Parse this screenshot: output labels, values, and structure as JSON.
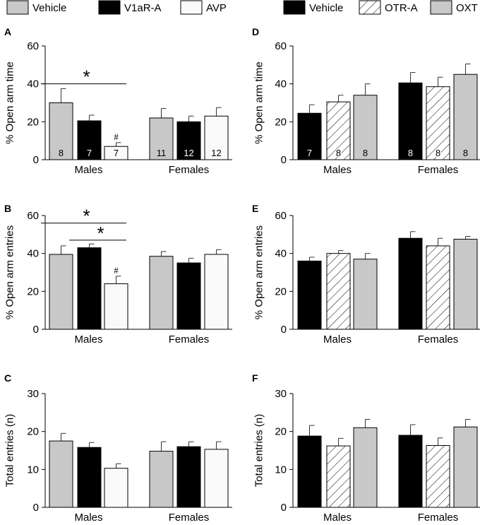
{
  "legends": {
    "left": [
      {
        "label": "Vehicle",
        "style": "gray"
      },
      {
        "label": "V1aR-A",
        "style": "black"
      },
      {
        "label": "AVP",
        "style": "white"
      }
    ],
    "right": [
      {
        "label": "Vehicle",
        "style": "black"
      },
      {
        "label": "OTR-A",
        "style": "hatch"
      },
      {
        "label": "OXT",
        "style": "gray"
      }
    ]
  },
  "colors": {
    "gray": "#c8c8c8",
    "black": "#000000",
    "white": "#fafafa"
  },
  "chart_data": [
    {
      "id": "A",
      "type": "bar",
      "ylabel": "% Open arm time",
      "ylim": [
        0,
        60
      ],
      "yticks": [
        0,
        20,
        40,
        60
      ],
      "categories": [
        "Males",
        "Females"
      ],
      "series": [
        {
          "name": "Vehicle",
          "values": [
            30,
            22
          ],
          "errors": [
            7.5,
            5
          ],
          "n": [
            "8",
            "11"
          ]
        },
        {
          "name": "V1aR-A",
          "values": [
            20.5,
            20
          ],
          "errors": [
            3,
            3
          ],
          "n": [
            "7",
            "12"
          ]
        },
        {
          "name": "AVP",
          "values": [
            7,
            23
          ],
          "errors": [
            2,
            4.5
          ],
          "n": [
            "7",
            "12"
          ]
        }
      ],
      "hash_marks": [
        {
          "group": 0,
          "series": 2,
          "label": "#"
        }
      ],
      "significance": [
        {
          "group": 0,
          "from": 0,
          "to": 2,
          "y": 40,
          "label": "*"
        }
      ]
    },
    {
      "id": "B",
      "type": "bar",
      "ylabel": "% Open arm entries",
      "ylim": [
        0,
        60
      ],
      "yticks": [
        0,
        20,
        40,
        60
      ],
      "categories": [
        "Males",
        "Females"
      ],
      "series": [
        {
          "name": "Vehicle",
          "values": [
            39.5,
            38.5
          ],
          "errors": [
            4.5,
            2.5
          ]
        },
        {
          "name": "V1aR-A",
          "values": [
            43,
            35
          ],
          "errors": [
            2,
            2.5
          ]
        },
        {
          "name": "AVP",
          "values": [
            24,
            39.5
          ],
          "errors": [
            4,
            2.5
          ]
        }
      ],
      "hash_marks": [
        {
          "group": 0,
          "series": 2,
          "label": "#"
        }
      ],
      "significance": [
        {
          "group": 0,
          "from": 0,
          "to": 2,
          "y": 56,
          "label": "*"
        },
        {
          "group": 0,
          "from": 1,
          "to": 2,
          "y": 47,
          "label": "*"
        }
      ]
    },
    {
      "id": "C",
      "type": "bar",
      "ylabel": "Total entries (n)",
      "ylim": [
        0,
        30
      ],
      "yticks": [
        0,
        10,
        20,
        30
      ],
      "categories": [
        "Males",
        "Females"
      ],
      "series": [
        {
          "name": "Vehicle",
          "values": [
            17.5,
            14.8
          ],
          "errors": [
            2,
            2.5
          ]
        },
        {
          "name": "V1aR-A",
          "values": [
            15.8,
            16
          ],
          "errors": [
            1.3,
            1.3
          ]
        },
        {
          "name": "AVP",
          "values": [
            10.3,
            15.3
          ],
          "errors": [
            1.2,
            2
          ]
        }
      ]
    },
    {
      "id": "D",
      "type": "bar",
      "ylabel": "% Open arm time",
      "ylim": [
        0,
        60
      ],
      "yticks": [
        0,
        20,
        40,
        60
      ],
      "categories": [
        "Males",
        "Females"
      ],
      "series": [
        {
          "name": "Vehicle",
          "values": [
            24.5,
            40.5
          ],
          "errors": [
            4.5,
            5.5
          ],
          "n": [
            "7",
            "8"
          ]
        },
        {
          "name": "OTR-A",
          "values": [
            30.5,
            38.5
          ],
          "errors": [
            3.5,
            5
          ],
          "n": [
            "8",
            "8"
          ]
        },
        {
          "name": "OXT",
          "values": [
            34,
            45
          ],
          "errors": [
            6,
            5.5
          ],
          "n": [
            "8",
            "8"
          ]
        }
      ]
    },
    {
      "id": "E",
      "type": "bar",
      "ylabel": "% Open arm entries",
      "ylim": [
        0,
        60
      ],
      "yticks": [
        0,
        20,
        40,
        60
      ],
      "categories": [
        "Males",
        "Females"
      ],
      "series": [
        {
          "name": "Vehicle",
          "values": [
            36,
            48
          ],
          "errors": [
            2,
            3.5
          ]
        },
        {
          "name": "OTR-A",
          "values": [
            40,
            44
          ],
          "errors": [
            1.5,
            4
          ]
        },
        {
          "name": "OXT",
          "values": [
            37,
            47.5
          ],
          "errors": [
            3,
            1.5
          ]
        }
      ]
    },
    {
      "id": "F",
      "type": "bar",
      "ylabel": "Total entries (n)",
      "ylim": [
        0,
        30
      ],
      "yticks": [
        0,
        10,
        20,
        30
      ],
      "categories": [
        "Males",
        "Females"
      ],
      "series": [
        {
          "name": "Vehicle",
          "values": [
            18.8,
            19
          ],
          "errors": [
            2.8,
            2.8
          ]
        },
        {
          "name": "OTR-A",
          "values": [
            16.2,
            16.3
          ],
          "errors": [
            2,
            2
          ]
        },
        {
          "name": "OXT",
          "values": [
            21,
            21.2
          ],
          "errors": [
            2.2,
            2
          ]
        }
      ]
    }
  ]
}
